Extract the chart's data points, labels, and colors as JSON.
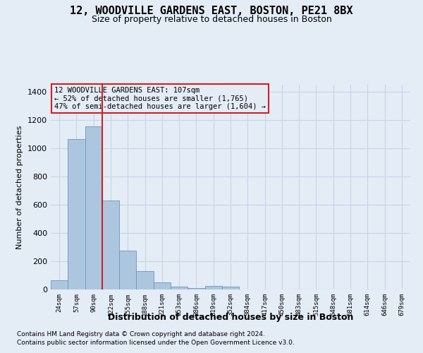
{
  "title": "12, WOODVILLE GARDENS EAST, BOSTON, PE21 8BX",
  "subtitle": "Size of property relative to detached houses in Boston",
  "xlabel": "Distribution of detached houses by size in Boston",
  "ylabel": "Number of detached properties",
  "footnote1": "Contains HM Land Registry data © Crown copyright and database right 2024.",
  "footnote2": "Contains public sector information licensed under the Open Government Licence v3.0.",
  "annotation_line1": "12 WOODVILLE GARDENS EAST: 107sqm",
  "annotation_line2": "← 52% of detached houses are smaller (1,765)",
  "annotation_line3": "47% of semi-detached houses are larger (1,604) →",
  "bar_categories": [
    "24sqm",
    "57sqm",
    "90sqm",
    "122sqm",
    "155sqm",
    "188sqm",
    "221sqm",
    "253sqm",
    "286sqm",
    "319sqm",
    "352sqm",
    "384sqm",
    "417sqm",
    "450sqm",
    "483sqm",
    "515sqm",
    "548sqm",
    "581sqm",
    "614sqm",
    "646sqm",
    "679sqm"
  ],
  "bar_values": [
    65,
    1065,
    1155,
    630,
    275,
    130,
    50,
    20,
    10,
    25,
    20,
    0,
    0,
    0,
    0,
    0,
    0,
    0,
    0,
    0,
    0
  ],
  "bar_color": "#adc6e0",
  "bar_edge_color": "#6699bb",
  "vline_color": "#cc2222",
  "annotation_box_color": "#cc2222",
  "grid_color": "#c8d4e4",
  "bg_color": "#e4ecf6",
  "ylim": [
    0,
    1450
  ],
  "yticks": [
    0,
    200,
    400,
    600,
    800,
    1000,
    1200,
    1400
  ],
  "vline_pos": 2.5
}
